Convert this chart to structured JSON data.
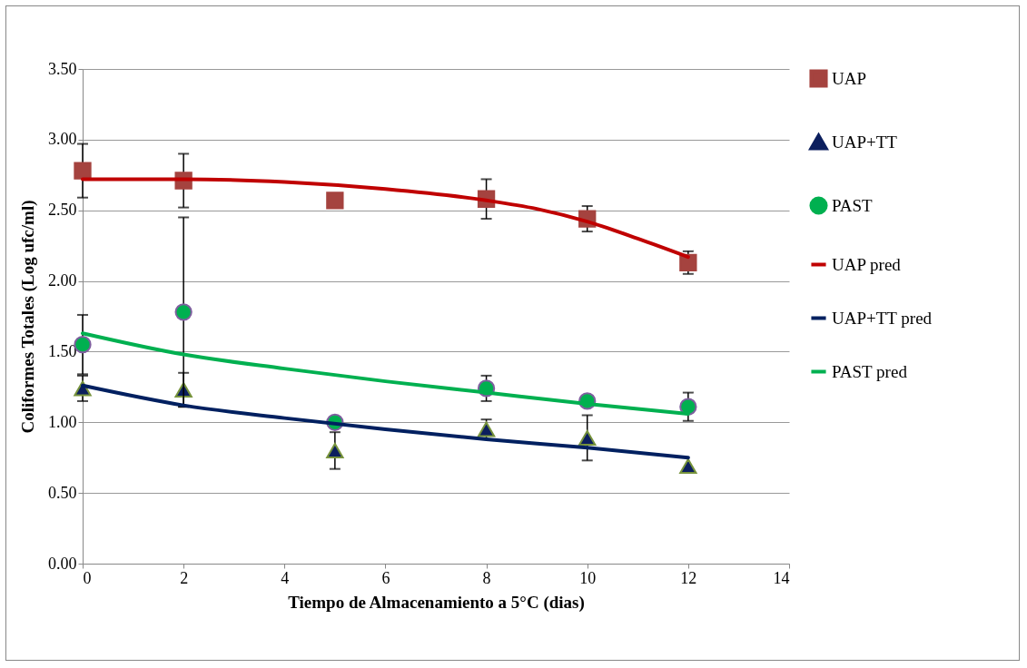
{
  "chart_data": {
    "type": "scatter",
    "xlabel": "Tiempo de Almacenamiento a 5°C (dias)",
    "ylabel": "Coliformes Totales (Log ufc/ml)",
    "xlim": [
      0,
      14
    ],
    "xticks": [
      0,
      2,
      4,
      6,
      8,
      10,
      12,
      14
    ],
    "ylim": [
      0,
      3.5
    ],
    "yticks": [
      {
        "value": 0,
        "label": "0.00"
      },
      {
        "value": 0.5,
        "label": "0.50"
      },
      {
        "value": 1,
        "label": "1.00"
      },
      {
        "value": 1.5,
        "label": "1.50"
      },
      {
        "value": 2,
        "label": "2.00"
      },
      {
        "value": 2.5,
        "label": "2.50"
      },
      {
        "value": 3,
        "label": "3.00"
      },
      {
        "value": 3.5,
        "label": "3.50"
      }
    ],
    "grid": "y",
    "legend": "right",
    "series": [
      {
        "name": "UAP",
        "marker": "square",
        "color": "#a5433f",
        "x": [
          0,
          2,
          5,
          8,
          10,
          12
        ],
        "values": [
          2.78,
          2.71,
          2.57,
          2.58,
          2.44,
          2.13
        ],
        "errors": [
          0.19,
          0.19,
          null,
          0.14,
          0.09,
          0.08
        ]
      },
      {
        "name": "UAP+TT",
        "marker": "triangle",
        "color": "#0c1f5e",
        "x": [
          0,
          2,
          5,
          8,
          10,
          12
        ],
        "values": [
          1.24,
          1.23,
          0.8,
          0.95,
          0.89,
          0.69
        ],
        "errors": [
          0.09,
          0.12,
          0.13,
          0.07,
          0.16,
          null
        ]
      },
      {
        "name": "PAST",
        "marker": "circle",
        "color": "#00b050",
        "x": [
          0,
          2,
          5,
          8,
          10,
          12
        ],
        "values": [
          1.55,
          1.78,
          1.0,
          1.24,
          1.15,
          1.11
        ],
        "errors": [
          0.21,
          0.67,
          null,
          0.09,
          null,
          0.1
        ]
      },
      {
        "name": "UAP pred",
        "type": "line",
        "marker": "none",
        "color": "#c00000",
        "x": [
          0,
          2,
          4,
          6,
          8,
          9,
          10,
          11,
          12
        ],
        "values": [
          2.72,
          2.72,
          2.7,
          2.65,
          2.57,
          2.51,
          2.42,
          2.3,
          2.17
        ]
      },
      {
        "name": "UAP+TT pred",
        "type": "line",
        "marker": "none",
        "color": "#002060",
        "x": [
          0,
          2,
          4,
          6,
          8,
          10,
          12
        ],
        "values": [
          1.26,
          1.12,
          1.03,
          0.95,
          0.88,
          0.82,
          0.75
        ]
      },
      {
        "name": "PAST pred",
        "type": "line",
        "marker": "none",
        "color": "#00b050",
        "x": [
          0,
          2,
          4,
          6,
          8,
          10,
          12
        ],
        "values": [
          1.63,
          1.48,
          1.38,
          1.29,
          1.21,
          1.13,
          1.06
        ]
      }
    ]
  }
}
